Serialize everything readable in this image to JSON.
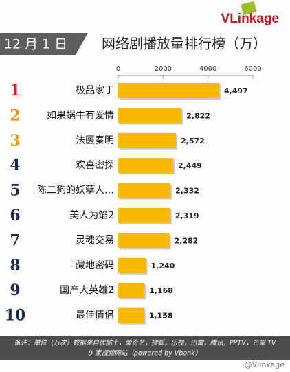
{
  "chart_data": {
    "type": "bar",
    "orientation": "horizontal",
    "logo": "VLinkage",
    "date": "12 月 1 日",
    "title": "网络剧播放量排行榜（万）",
    "ranks": [
      "1",
      "2",
      "3",
      "4",
      "5",
      "6",
      "7",
      "8",
      "9",
      "10"
    ],
    "rank_colors": [
      "#d7261e",
      "#e8901a",
      "#e0a21a",
      "#1f2a4a",
      "#1f2a4a",
      "#1f2a4a",
      "#1f2a4a",
      "#1f2a4a",
      "#1f2a4a",
      "#1f2a4a"
    ],
    "categories": [
      "极品家丁",
      "如果蜗牛有爱情",
      "法医秦明",
      "欢喜密探",
      "陈二狗的妖孽人…",
      "美人为馅2",
      "灵魂交易",
      "藏地密码",
      "国产大英雄2",
      "最佳情侣"
    ],
    "values": [
      4497,
      2822,
      2572,
      2449,
      2332,
      2319,
      2282,
      1240,
      1168,
      1158
    ],
    "value_labels": [
      "4,497",
      "2,822",
      "2,572",
      "2,449",
      "2,332",
      "2,319",
      "2,282",
      "1,240",
      "1,168",
      "1,158"
    ],
    "color": "#f6b800",
    "xlim": [
      0,
      6000
    ],
    "xticks": [
      0,
      2000,
      4000,
      6000
    ],
    "footnote": [
      "备注：单位（万次）数据来自优酷土，爱奇艺，搜狐，乐视，迅雷，腾讯，PPTV，芒果 TV",
      "9 家视频网站（powered by Vbank）"
    ],
    "watermark": "@Vlinkage"
  }
}
